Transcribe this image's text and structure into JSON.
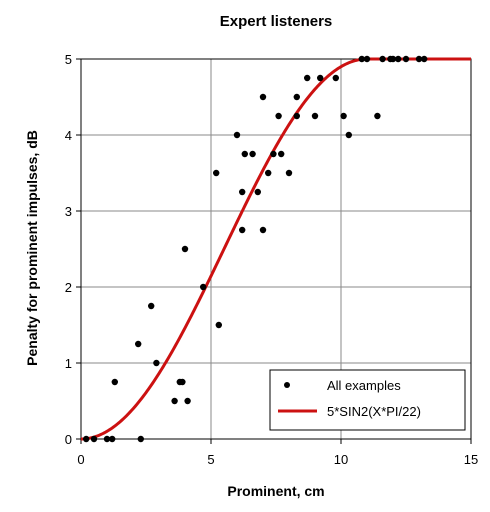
{
  "chart_data": {
    "type": "scatter",
    "title": "Expert listeners",
    "xlabel": "Prominent, cm",
    "ylabel": "Penalty for prominent impulses, dB",
    "xlim": [
      0,
      15
    ],
    "ylim": [
      0,
      5
    ],
    "x_ticks": [
      "0",
      "5",
      "10",
      "15"
    ],
    "y_ticks": [
      "0",
      "1",
      "2",
      "3",
      "4",
      "5"
    ],
    "grid": true,
    "legend_position": "bottom-right",
    "series": [
      {
        "name": "All examples",
        "kind": "scatter",
        "color": "#000000",
        "points": [
          [
            0.2,
            0
          ],
          [
            0.5,
            0
          ],
          [
            1.0,
            0
          ],
          [
            1.2,
            0
          ],
          [
            1.3,
            0.75
          ],
          [
            2.2,
            1.25
          ],
          [
            2.3,
            0
          ],
          [
            2.7,
            1.75
          ],
          [
            2.9,
            1.0
          ],
          [
            3.6,
            0.5
          ],
          [
            3.8,
            0.75
          ],
          [
            3.9,
            0.75
          ],
          [
            4.0,
            2.5
          ],
          [
            4.1,
            0.5
          ],
          [
            4.7,
            2.0
          ],
          [
            5.2,
            3.5
          ],
          [
            5.3,
            1.5
          ],
          [
            6.0,
            4.0
          ],
          [
            6.2,
            3.25
          ],
          [
            6.2,
            2.75
          ],
          [
            6.3,
            3.75
          ],
          [
            6.6,
            3.75
          ],
          [
            6.8,
            3.25
          ],
          [
            7.0,
            4.5
          ],
          [
            7.0,
            2.75
          ],
          [
            7.2,
            3.5
          ],
          [
            7.4,
            3.75
          ],
          [
            7.6,
            4.25
          ],
          [
            7.7,
            3.75
          ],
          [
            8.0,
            3.5
          ],
          [
            8.3,
            4.5
          ],
          [
            8.3,
            4.25
          ],
          [
            8.7,
            4.75
          ],
          [
            9.0,
            4.25
          ],
          [
            9.2,
            4.75
          ],
          [
            9.8,
            4.75
          ],
          [
            10.1,
            4.25
          ],
          [
            10.3,
            4.0
          ],
          [
            10.8,
            5.0
          ],
          [
            11.0,
            5.0
          ],
          [
            11.4,
            4.25
          ],
          [
            11.6,
            5.0
          ],
          [
            11.9,
            5.0
          ],
          [
            12.0,
            5.0
          ],
          [
            12.2,
            5.0
          ],
          [
            12.5,
            5.0
          ],
          [
            13.0,
            5.0
          ],
          [
            13.2,
            5.0
          ]
        ]
      },
      {
        "name": "5*SIN2(X*PI/22)",
        "kind": "line",
        "color": "#cc1111",
        "function": "5*sin^2(x*pi/22), clamped at 5 for x>=11",
        "x_range": [
          0,
          15
        ]
      }
    ]
  }
}
